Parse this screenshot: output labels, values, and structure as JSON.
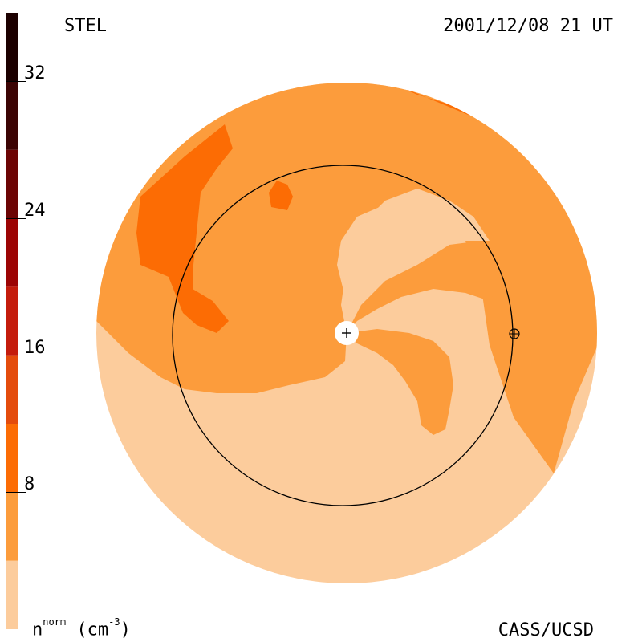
{
  "header": {
    "source": "STEL",
    "timestamp": "2001/12/08 21 UT"
  },
  "footer": {
    "credit": "CASS/UCSD",
    "quantity": "n",
    "quantity_sup": "norm",
    "unit_prefix": "(cm",
    "unit_sup": "-3",
    "unit_suffix": ")"
  },
  "color_scale": {
    "min": 0,
    "max": 36,
    "ticks": [
      {
        "value": 8,
        "label": "8"
      },
      {
        "value": 16,
        "label": "16"
      },
      {
        "value": 24,
        "label": "24"
      },
      {
        "value": 32,
        "label": "32"
      }
    ],
    "bands": [
      {
        "from": 0,
        "to": 4,
        "color": "#FCCC9C"
      },
      {
        "from": 4,
        "to": 8,
        "color": "#FC9C3C"
      },
      {
        "from": 8,
        "to": 12,
        "color": "#FC6C04"
      },
      {
        "from": 12,
        "to": 16,
        "color": "#E44C0C"
      },
      {
        "from": 16,
        "to": 20,
        "color": "#C41C0C"
      },
      {
        "from": 20,
        "to": 24,
        "color": "#9C0404"
      },
      {
        "from": 24,
        "to": 28,
        "color": "#6C0404"
      },
      {
        "from": 28,
        "to": 32,
        "color": "#3C0404"
      },
      {
        "from": 32,
        "to": 36,
        "color": "#1C0000"
      }
    ]
  },
  "map": {
    "colors": {
      "low": "#FCCC9C",
      "mid": "#FC9C3C",
      "high": "#FC6C04",
      "sun_fill": "#ffffff",
      "outline": "#000000"
    },
    "sun_symbol": "+",
    "earth_symbol": "earth-symbol"
  }
}
